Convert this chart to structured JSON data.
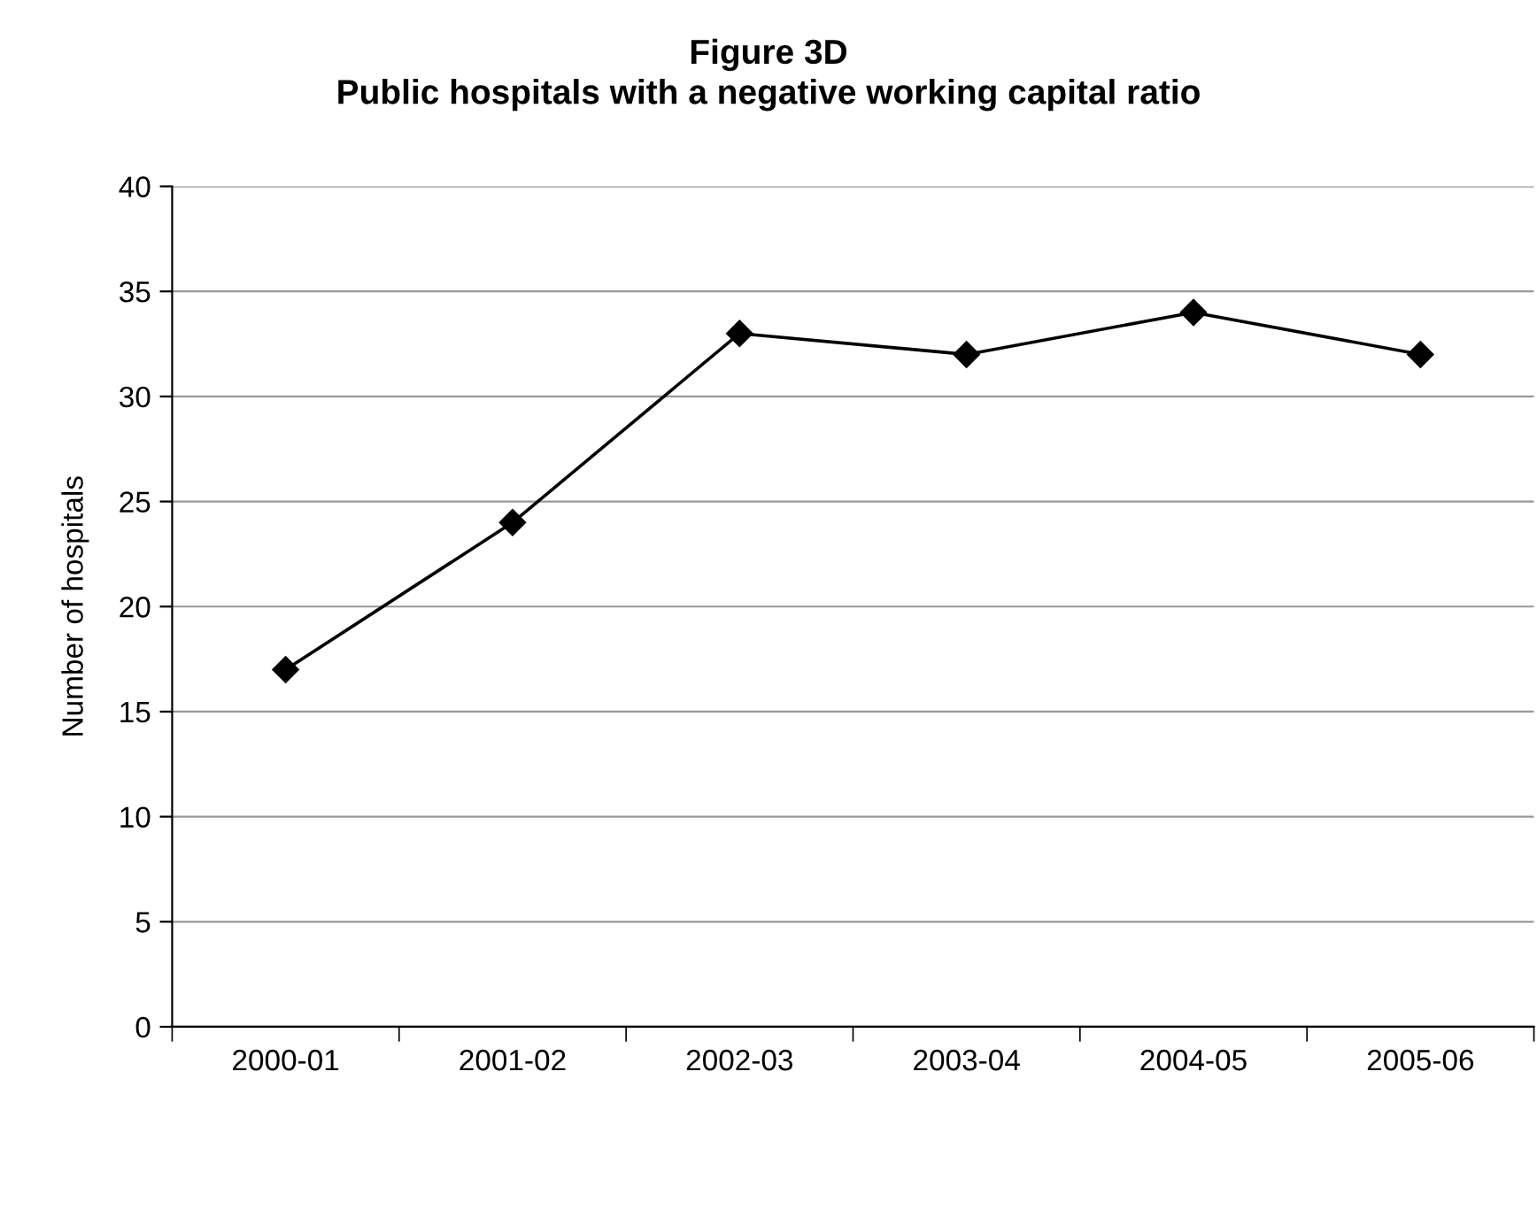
{
  "chart_data": {
    "type": "line",
    "title": "Figure 3D",
    "subtitle": "Public hospitals with a negative working capital ratio",
    "ylabel": "Number of hospitals",
    "categories": [
      "2000-01",
      "2001-02",
      "2002-03",
      "2003-04",
      "2004-05",
      "2005-06"
    ],
    "series": [
      {
        "color": "#000000",
        "values": [
          17,
          24,
          33,
          32,
          34,
          32
        ]
      }
    ],
    "ylim": [
      0,
      40
    ],
    "yticks": [
      0,
      5,
      10,
      15,
      20,
      25,
      30,
      35,
      40
    ],
    "grid": "y",
    "marker": "diamond",
    "line_style": "solid",
    "legend": false
  }
}
